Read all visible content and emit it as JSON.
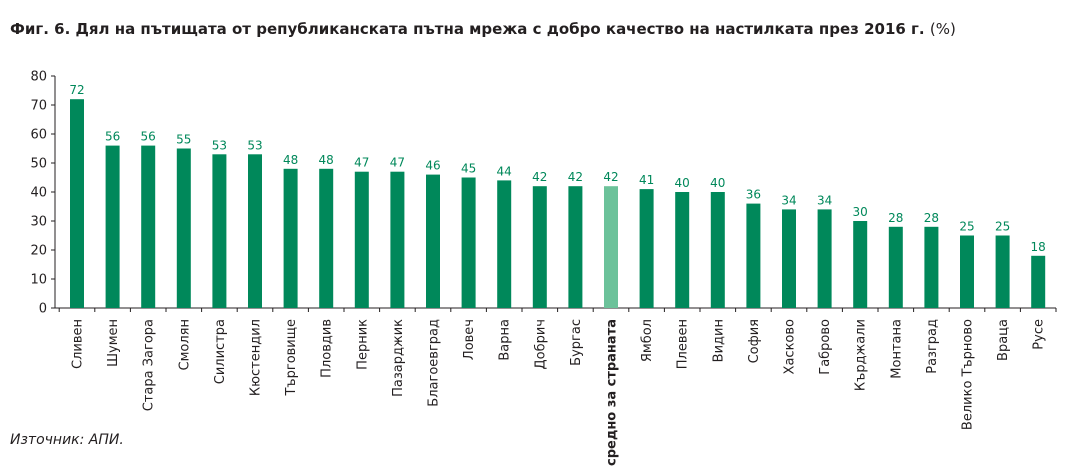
{
  "title": {
    "main": "Фиг. 6.  Дял на пътищата от републиканската пътна мрежа с добро качество на настилката през 2016 г.",
    "unit": "(%)"
  },
  "source": "Източник: АПИ.",
  "colors": {
    "bar": "#00885a",
    "highlight": "#6cc29a",
    "axis": "#231f20",
    "label": "#00885a"
  },
  "chart_data": {
    "type": "bar",
    "title": "Фиг. 6.  Дял на пътищата от републиканската пътна мрежа с добро качество на настилката през 2016 г. (%)",
    "categories": [
      "Сливен",
      "Шумен",
      "Стара Загора",
      "Смолян",
      "Силистра",
      "Кюстендил",
      "Търговище",
      "Пловдив",
      "Перник",
      "Пазарджик",
      "Благоевград",
      "Ловеч",
      "Варна",
      "Добрич",
      "Бургас",
      "средно за страната",
      "Ямбол",
      "Плевен",
      "Видин",
      "София",
      "Хасково",
      "Габрово",
      "Кърджали",
      "Монтана",
      "Разград",
      "Велико Търново",
      "Враца",
      "Русе"
    ],
    "values": [
      72,
      56,
      56,
      55,
      53,
      53,
      48,
      48,
      47,
      47,
      46,
      45,
      44,
      42,
      42,
      42,
      41,
      40,
      40,
      36,
      34,
      34,
      30,
      28,
      28,
      25,
      25,
      18
    ],
    "highlight_category": "средно за страната",
    "ylim": [
      0,
      80
    ],
    "yticks": [
      0,
      10,
      20,
      30,
      40,
      50,
      60,
      70,
      80
    ],
    "grid": false,
    "xlabel": "",
    "ylabel": ""
  }
}
